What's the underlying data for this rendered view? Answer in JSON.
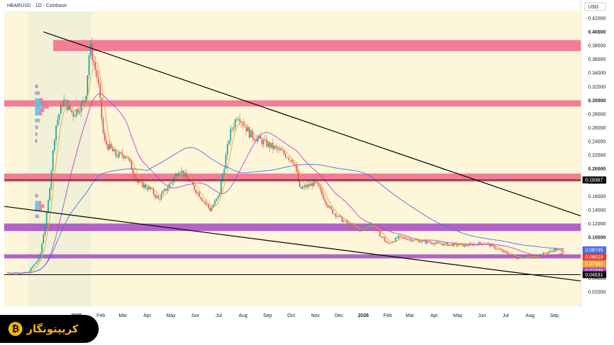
{
  "header": {
    "title": "HBARUSD · 1D · Coinbase"
  },
  "logo": {
    "text": "کریپتونگار",
    "icon": "bitcoin-icon"
  },
  "colors": {
    "background": "#fdf6d9",
    "red_zone": "#f2708e",
    "purple_zone": "#a854c2",
    "trendline": "#000000",
    "ma_fast": "#f0a030",
    "ma_mid": "#c23cc9",
    "ma_slow": "#4a6fe0",
    "candle_up": "#26a69a",
    "candle_down": "#e05a5a",
    "volume_profile": "#4fc3f7"
  },
  "chart_data": {
    "type": "candlestick",
    "currency_label": "USD",
    "ylim": [
      0.01,
      0.42
    ],
    "y_ticks": [
      "0.42000",
      "0.40000",
      "0.38000",
      "0.36000",
      "0.34000",
      "0.32000",
      "0.30000",
      "0.28000",
      "0.26000",
      "0.24000",
      "0.22000",
      "0.20000",
      "0.18000",
      "0.16000",
      "0.14000",
      "0.12000",
      "0.10000",
      "0.04000",
      "0.02000"
    ],
    "x_ticks": [
      "2025",
      "Feb",
      "Mar",
      "Apr",
      "May",
      "Jun",
      "Jul",
      "Aug",
      "Sep",
      "Oct",
      "Nov",
      "Dec",
      "2026",
      "Feb",
      "Mar",
      "Apr",
      "May",
      "Jun",
      "Jul",
      "Aug",
      "Sep"
    ],
    "price_levels": [
      "0.18367",
      "0.08745",
      "0.08029",
      "0.07685",
      "0.07436",
      "0.04531"
    ],
    "zones": [
      {
        "type": "resistance",
        "from": 0.372,
        "to": 0.388
      },
      {
        "type": "resistance",
        "from": 0.291,
        "to": 0.3
      },
      {
        "type": "resistance",
        "from": 0.181,
        "to": 0.193
      },
      {
        "type": "support",
        "from": 0.109,
        "to": 0.12
      },
      {
        "type": "support",
        "from": 0.069,
        "to": 0.075
      }
    ],
    "horizontal_lines": [
      0.18367,
      0.04531
    ],
    "trendlines": [
      {
        "name": "upper",
        "from": [
          "2024-11-20",
          0.4
        ],
        "to": [
          "2026-10-05",
          0.131
        ]
      },
      {
        "name": "lower",
        "from": [
          "2024-10-01",
          0.145
        ],
        "to": [
          "2026-10-05",
          0.036
        ]
      }
    ],
    "price_path": [
      [
        "2024-11-01",
        0.05
      ],
      [
        "2024-11-15",
        0.07
      ],
      [
        "2024-11-25",
        0.14
      ],
      [
        "2024-12-05",
        0.26
      ],
      [
        "2024-12-15",
        0.3
      ],
      [
        "2024-12-28",
        0.28
      ],
      [
        "2025-01-12",
        0.3
      ],
      [
        "2025-01-18",
        0.38
      ],
      [
        "2025-01-28",
        0.33
      ],
      [
        "2025-02-05",
        0.24
      ],
      [
        "2025-02-20",
        0.22
      ],
      [
        "2025-03-05",
        0.22
      ],
      [
        "2025-03-20",
        0.18
      ],
      [
        "2025-04-05",
        0.17
      ],
      [
        "2025-04-15",
        0.155
      ],
      [
        "2025-05-01",
        0.18
      ],
      [
        "2025-05-12",
        0.2
      ],
      [
        "2025-06-01",
        0.17
      ],
      [
        "2025-06-20",
        0.14
      ],
      [
        "2025-07-01",
        0.16
      ],
      [
        "2025-07-15",
        0.25
      ],
      [
        "2025-07-25",
        0.28
      ],
      [
        "2025-08-10",
        0.25
      ],
      [
        "2025-08-25",
        0.24
      ],
      [
        "2025-09-10",
        0.23
      ],
      [
        "2025-09-25",
        0.22
      ],
      [
        "2025-10-05",
        0.21
      ],
      [
        "2025-10-12",
        0.17
      ],
      [
        "2025-11-01",
        0.18
      ],
      [
        "2025-11-20",
        0.14
      ],
      [
        "2025-12-05",
        0.125
      ],
      [
        "2025-12-25",
        0.11
      ],
      [
        "2026-01-10",
        0.12
      ],
      [
        "2026-02-01",
        0.09
      ],
      [
        "2026-02-15",
        0.1
      ],
      [
        "2026-03-10",
        0.095
      ],
      [
        "2026-04-10",
        0.09
      ],
      [
        "2026-05-10",
        0.088
      ],
      [
        "2026-06-05",
        0.092
      ],
      [
        "2026-06-25",
        0.08
      ],
      [
        "2026-07-15",
        0.07
      ],
      [
        "2026-08-10",
        0.072
      ],
      [
        "2026-09-01",
        0.082
      ],
      [
        "2026-09-12",
        0.08
      ]
    ]
  }
}
